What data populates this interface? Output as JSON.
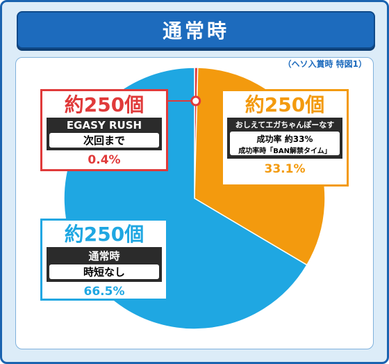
{
  "header": {
    "title": "通常時"
  },
  "note": "（ヘソ入賞時 特図1）",
  "chart_data": {
    "type": "pie",
    "title": "通常時",
    "slices": [
      {
        "name": "EGASY RUSH 次回まで",
        "value": 0.4,
        "label": "0.4%",
        "rounds": "約250個",
        "desc1": "EGASY RUSH",
        "desc2": "次回まで",
        "color": "#e03a3a"
      },
      {
        "name": "おしえてエガちゃんぽーなす",
        "value": 33.1,
        "label": "33.1%",
        "rounds": "約250個",
        "desc1": "おしえてエガちゃんぽーなす",
        "desc2": "成功率 約33%",
        "desc3": "成功率時「BAN解禁タイム」",
        "color": "#f39a0e"
      },
      {
        "name": "通常時 時短なし",
        "value": 66.5,
        "label": "66.5%",
        "rounds": "約250個",
        "desc1": "通常時",
        "desc2": "時短なし",
        "color": "#1fa7e2"
      }
    ]
  }
}
